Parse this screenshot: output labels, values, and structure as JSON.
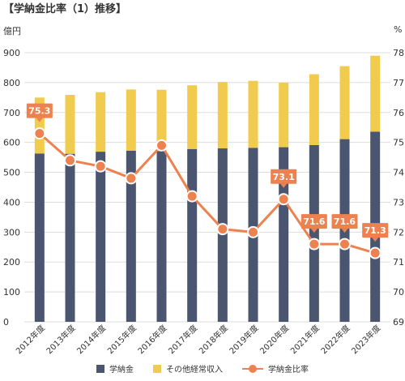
{
  "title": "【学納金比率（1）推移】",
  "chart_data": {
    "type": "bar",
    "categories": [
      "2012年度",
      "2013年度",
      "2014年度",
      "2015年度",
      "2016年度",
      "2017年度",
      "2018年度",
      "2019年度",
      "2020年度",
      "2021年度",
      "2022年度",
      "2023年度"
    ],
    "left_axis": {
      "unit": "億円",
      "min": 0,
      "max": 900,
      "ticks": [
        0,
        100,
        200,
        300,
        400,
        500,
        600,
        700,
        800,
        900
      ]
    },
    "right_axis": {
      "unit": "%",
      "min": 69,
      "max": 78,
      "ticks": [
        69,
        70,
        71,
        72,
        73,
        74,
        75,
        76,
        77,
        78
      ]
    },
    "series": [
      {
        "name": "学納金",
        "type": "bar",
        "axis": "left",
        "color": "#4a5570",
        "values": [
          563,
          562,
          569,
          572,
          571,
          578,
          580,
          582,
          584,
          591,
          611,
          636
        ]
      },
      {
        "name": "その他経常収入",
        "type": "bar",
        "axis": "left",
        "color": "#f0cb4e",
        "values": [
          187,
          197,
          199,
          205,
          205,
          213,
          222,
          224,
          216,
          237,
          244,
          254
        ]
      },
      {
        "name": "学納金比率",
        "type": "line",
        "axis": "right",
        "color": "#ee8150",
        "values": [
          75.3,
          74.4,
          74.2,
          73.8,
          74.9,
          73.2,
          72.1,
          72.0,
          73.1,
          71.6,
          71.6,
          71.3
        ]
      }
    ],
    "data_labels": [
      {
        "index": 0,
        "text": "75.3"
      },
      {
        "index": 8,
        "text": "73.1"
      },
      {
        "index": 9,
        "text": "71.6"
      },
      {
        "index": 10,
        "text": "71.6"
      },
      {
        "index": 11,
        "text": "71.3"
      }
    ],
    "grid": true,
    "legend_position": "bottom"
  }
}
